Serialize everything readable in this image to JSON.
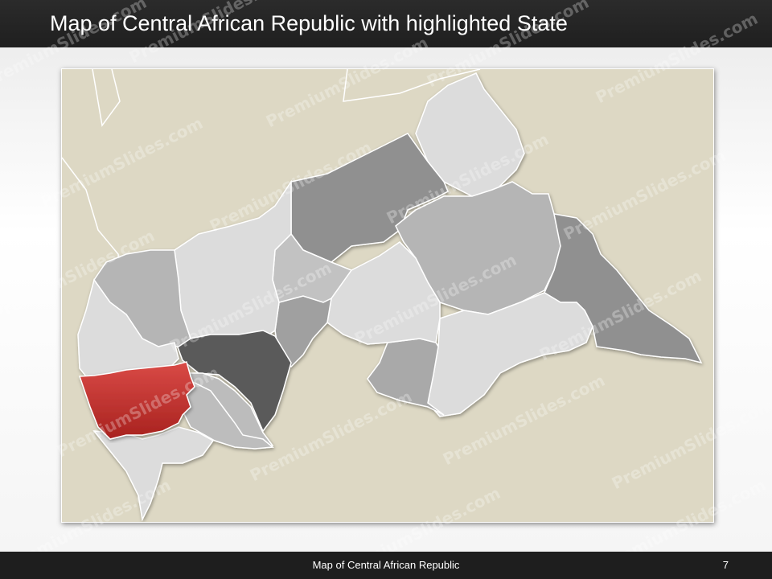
{
  "slide": {
    "title": "Map of Central African Republic with highlighted State",
    "footer": "Map of Central African Republic",
    "page_number": "7",
    "watermark": "PremiumSlides.com"
  },
  "map": {
    "country": "Central African Republic",
    "highlighted_region": "Nana-Mambéré",
    "colors": {
      "background": "#ddd8c4",
      "highlight": "#cc3333",
      "light_region": "#dcdcdc",
      "mid_region": "#b5b5b5",
      "dark_region": "#909090",
      "darkest_region": "#5a5a5a"
    }
  }
}
